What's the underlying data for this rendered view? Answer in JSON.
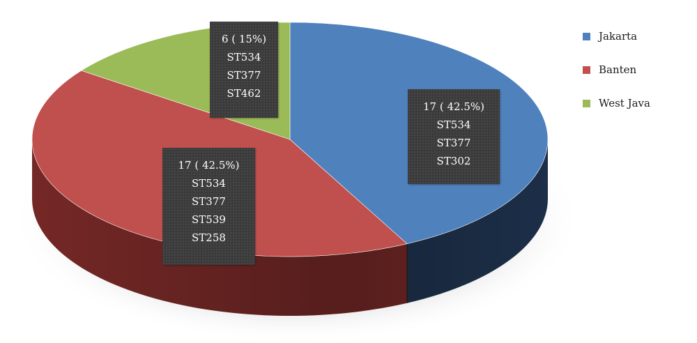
{
  "chart_data": {
    "type": "pie",
    "title": "",
    "categories": [
      "Jakarta",
      "Banten",
      "West Java"
    ],
    "values": [
      17,
      17,
      6
    ],
    "series": [
      {
        "name": "Jakarta",
        "value": 17,
        "percent": "42.5%",
        "color": "#4f81bd",
        "side_color": "#1f3450",
        "label_lines": [
          "17 ( 42.5%)",
          "ST534",
          "ST377",
          "ST302"
        ]
      },
      {
        "name": "Banten",
        "value": 17,
        "percent": "42.5%",
        "color": "#c0504d",
        "side_color": "#7a2a28",
        "label_lines": [
          "17 ( 42.5%)",
          "ST534",
          "ST377",
          "ST539",
          "ST258"
        ]
      },
      {
        "name": "West Java",
        "value": 6,
        "percent": "15%",
        "color": "#9bbb59",
        "side_color": "#5f7a30",
        "label_lines": [
          "6 ( 15%)",
          "ST534",
          "ST377",
          "ST462"
        ]
      }
    ],
    "legend_position": "right",
    "style": "3d-exploded"
  }
}
